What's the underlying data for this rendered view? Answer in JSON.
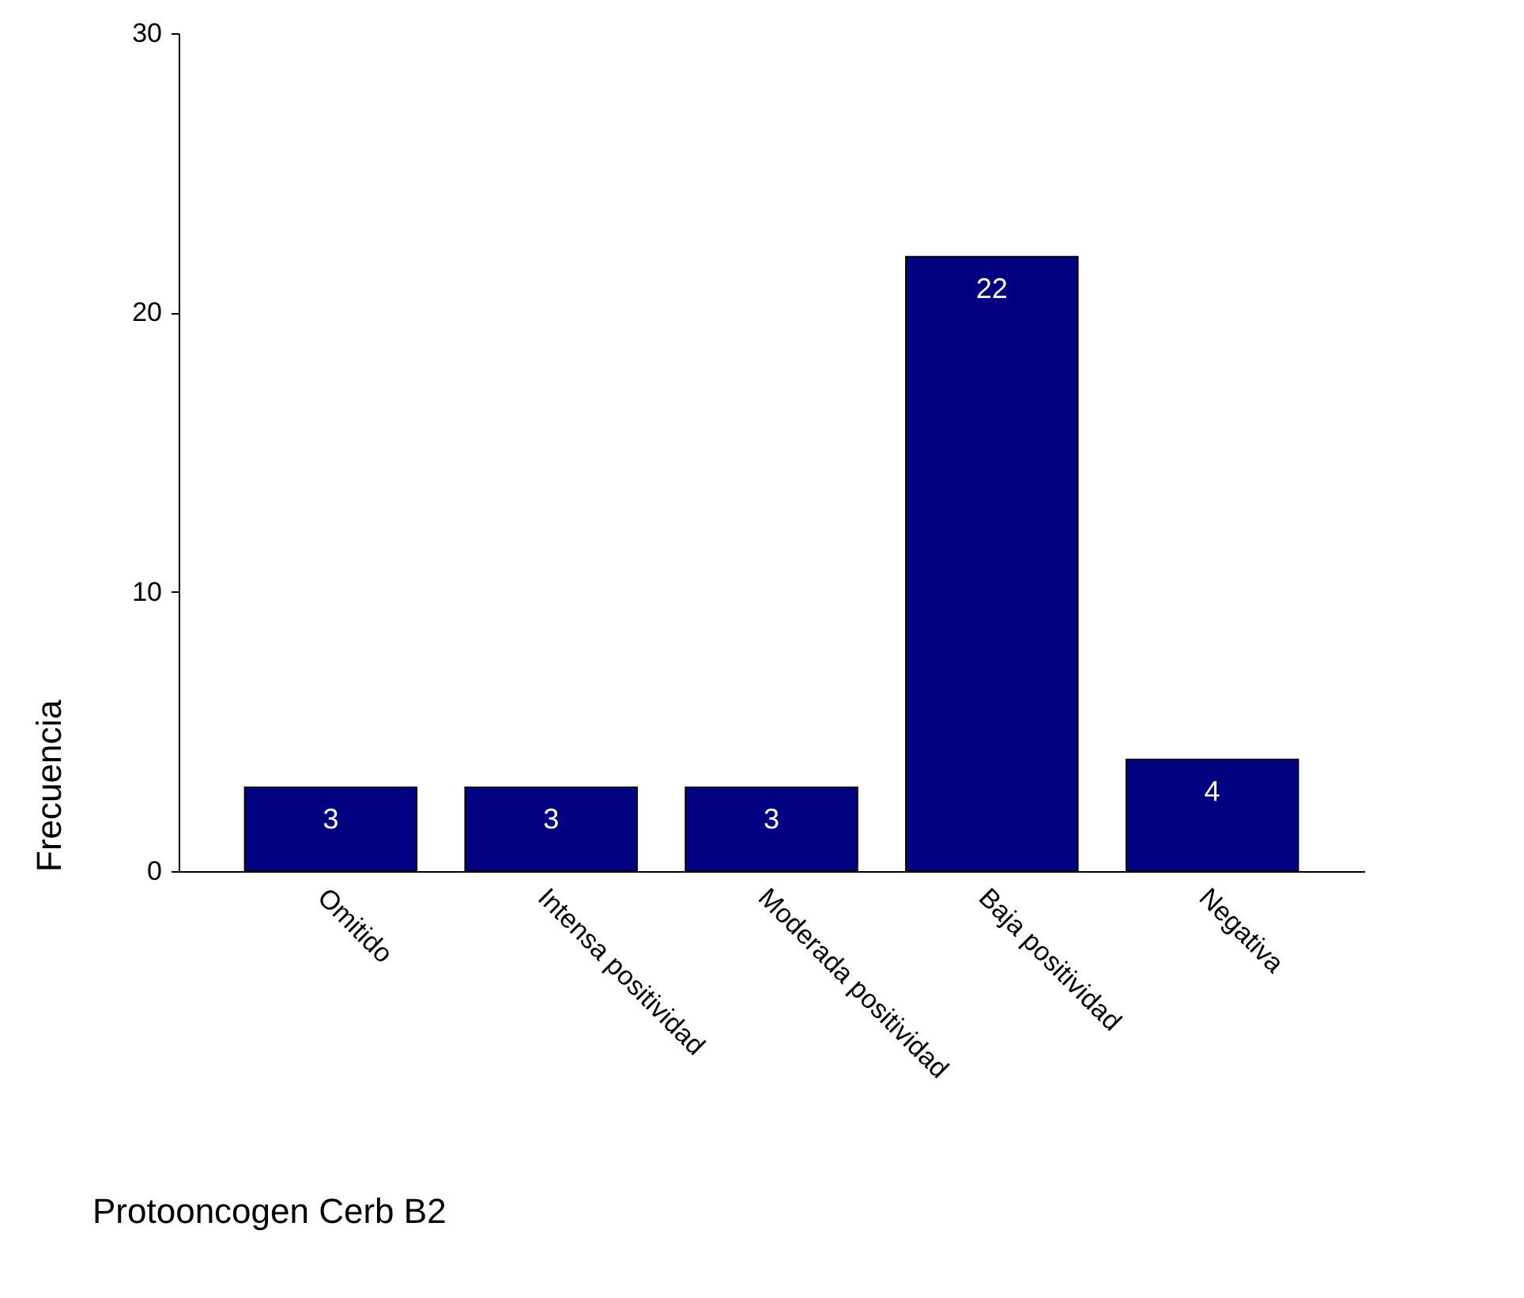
{
  "chart_data": {
    "type": "bar",
    "xlabel": "Protooncogen Cerb B2",
    "ylabel": "Frecuencia",
    "categories": [
      "Omitido",
      "Intensa positividad",
      "Moderada positividad",
      "Baja positividad",
      "Negativa"
    ],
    "values": [
      3,
      3,
      3,
      22,
      4
    ],
    "color": "#000080",
    "ylim": [
      0,
      30
    ],
    "yticks": [
      0,
      10,
      20,
      30
    ],
    "grid": false,
    "data_labels": true
  }
}
